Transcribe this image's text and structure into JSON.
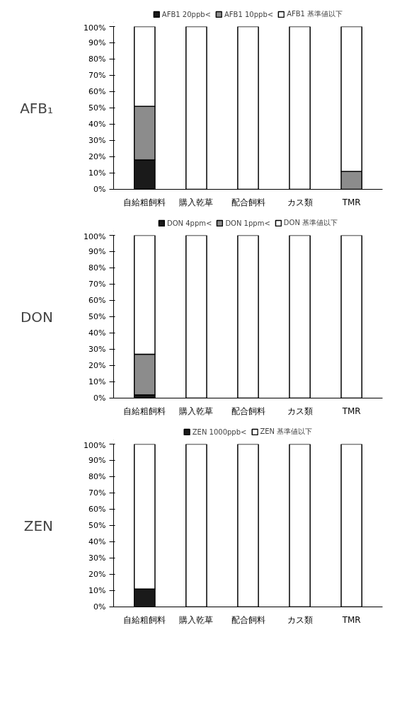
{
  "chart_data": [
    {
      "type": "bar",
      "stacked": true,
      "ylabel": "AFB₁",
      "categories": [
        "自給粗飼料",
        "購入乾草",
        "配合飼料",
        "カス類",
        "TMR"
      ],
      "series": [
        {
          "name": "AFB1 20ppb<",
          "color": "#1a1a1a",
          "values": [
            18,
            0,
            0,
            0,
            0
          ]
        },
        {
          "name": "AFB1 10ppb<",
          "color": "#8c8c8c",
          "values": [
            33,
            0,
            0,
            0,
            11
          ]
        },
        {
          "name": "AFB1 基準値以下",
          "color": "#ffffff",
          "values": [
            49,
            100,
            100,
            100,
            89
          ]
        }
      ],
      "ylim": [
        0,
        100
      ],
      "yticks": [
        {
          "value": 0,
          "label": "0%"
        },
        {
          "value": 10,
          "label": "10%"
        },
        {
          "value": 20,
          "label": "20%"
        },
        {
          "value": 30,
          "label": "30%"
        },
        {
          "value": 40,
          "label": "40%"
        },
        {
          "value": 50,
          "label": "50%"
        },
        {
          "value": 60,
          "label": "60%"
        },
        {
          "value": 70,
          "label": "70%"
        },
        {
          "value": 80,
          "label": "80%"
        },
        {
          "value": 90,
          "label": "90%"
        },
        {
          "value": 100,
          "label": "100%"
        }
      ],
      "grid": false,
      "legend": "top"
    },
    {
      "type": "bar",
      "stacked": true,
      "ylabel": "DON",
      "categories": [
        "自給粗飼料",
        "購入乾草",
        "配合飼料",
        "カス類",
        "TMR"
      ],
      "series": [
        {
          "name": "DON 4ppm<",
          "color": "#1a1a1a",
          "values": [
            2,
            0,
            0,
            0,
            0
          ]
        },
        {
          "name": "DON 1ppm<",
          "color": "#8c8c8c",
          "values": [
            25,
            0,
            0,
            0,
            0
          ]
        },
        {
          "name": "DON 基準値以下",
          "color": "#ffffff",
          "values": [
            73,
            100,
            100,
            100,
            100
          ]
        }
      ],
      "ylim": [
        0,
        100
      ],
      "yticks": [
        {
          "value": 0,
          "label": "0%"
        },
        {
          "value": 10,
          "label": "10%"
        },
        {
          "value": 20,
          "label": "20%"
        },
        {
          "value": 30,
          "label": "30%"
        },
        {
          "value": 40,
          "label": "40%"
        },
        {
          "value": 50,
          "label": "50%"
        },
        {
          "value": 60,
          "label": "60%"
        },
        {
          "value": 70,
          "label": "70%"
        },
        {
          "value": 80,
          "label": "80%"
        },
        {
          "value": 90,
          "label": "90%"
        },
        {
          "value": 100,
          "label": "100%"
        }
      ],
      "grid": false,
      "legend": "top"
    },
    {
      "type": "bar",
      "stacked": true,
      "ylabel": "ZEN",
      "categories": [
        "自給粗飼料",
        "購入乾草",
        "配合飼料",
        "カス類",
        "TMR"
      ],
      "series": [
        {
          "name": "ZEN 1000ppb<",
          "color": "#1a1a1a",
          "values": [
            11,
            0,
            0,
            0,
            0
          ]
        },
        {
          "name": "ZEN 基準値以下",
          "color": "#ffffff",
          "values": [
            89,
            100,
            100,
            100,
            100
          ]
        }
      ],
      "ylim": [
        0,
        100
      ],
      "yticks": [
        {
          "value": 0,
          "label": "0%"
        },
        {
          "value": 10,
          "label": "10%"
        },
        {
          "value": 20,
          "label": "20%"
        },
        {
          "value": 30,
          "label": "30%"
        },
        {
          "value": 40,
          "label": "40%"
        },
        {
          "value": 50,
          "label": "50%"
        },
        {
          "value": 60,
          "label": "60%"
        },
        {
          "value": 70,
          "label": "70%"
        },
        {
          "value": 80,
          "label": "80%"
        },
        {
          "value": 90,
          "label": "90%"
        },
        {
          "value": 100,
          "label": "100%"
        }
      ],
      "grid": false,
      "legend": "top"
    }
  ]
}
